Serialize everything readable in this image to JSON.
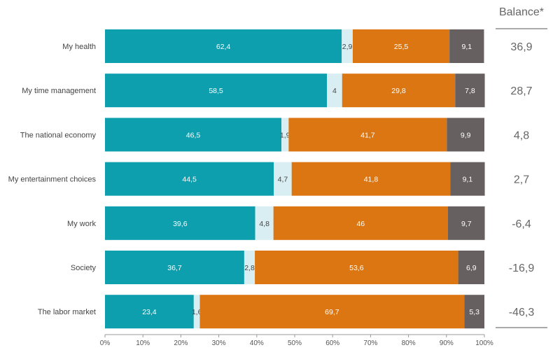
{
  "chart_data": {
    "type": "bar",
    "orientation": "horizontal",
    "stacked": true,
    "categories": [
      "My health",
      "My time management",
      "The national economy",
      "My entertainment choices",
      "My work",
      "Society",
      "The labor market"
    ],
    "series": [
      {
        "values": [
          62.4,
          58.5,
          46.5,
          44.5,
          39.6,
          36.7,
          23.4
        ],
        "color": "#0e9fae",
        "label_color": "#ffffff"
      },
      {
        "values": [
          2.9,
          4,
          1.9,
          4.7,
          4.8,
          2.8,
          1.6
        ],
        "color": "#d8eef2",
        "label_color": "#444444"
      },
      {
        "values": [
          25.5,
          29.8,
          41.7,
          41.8,
          46,
          53.6,
          69.7
        ],
        "color": "#db7612",
        "label_color": "#ffffff"
      },
      {
        "values": [
          9.1,
          7.8,
          9.9,
          9.1,
          9.7,
          6.9,
          5.3
        ],
        "color": "#676060",
        "label_color": "#ffffff"
      }
    ],
    "value_labels": [
      [
        "62,4",
        "2,9",
        "25,5",
        "9,1"
      ],
      [
        "58,5",
        "4",
        "29,8",
        "7,8"
      ],
      [
        "46,5",
        "1,9",
        "41,7",
        "9,9"
      ],
      [
        "44,5",
        "4,7",
        "41,8",
        "9,1"
      ],
      [
        "39,6",
        "4,8",
        "46",
        "9,7"
      ],
      [
        "36,7",
        "2,8",
        "53,6",
        "6,9"
      ],
      [
        "23,4",
        "1,6",
        "69,7",
        "5,3"
      ]
    ],
    "xlim": [
      0,
      100
    ],
    "x_ticks": [
      "0%",
      "10%",
      "20%",
      "30%",
      "40%",
      "50%",
      "60%",
      "70%",
      "80%",
      "90%",
      "100%"
    ],
    "grid": false,
    "legend": "none",
    "balance": {
      "header": "Balance*",
      "values": [
        "36,9",
        "28,7",
        "4,8",
        "2,7",
        "-6,4",
        "-16,9",
        "-46,3"
      ]
    }
  }
}
